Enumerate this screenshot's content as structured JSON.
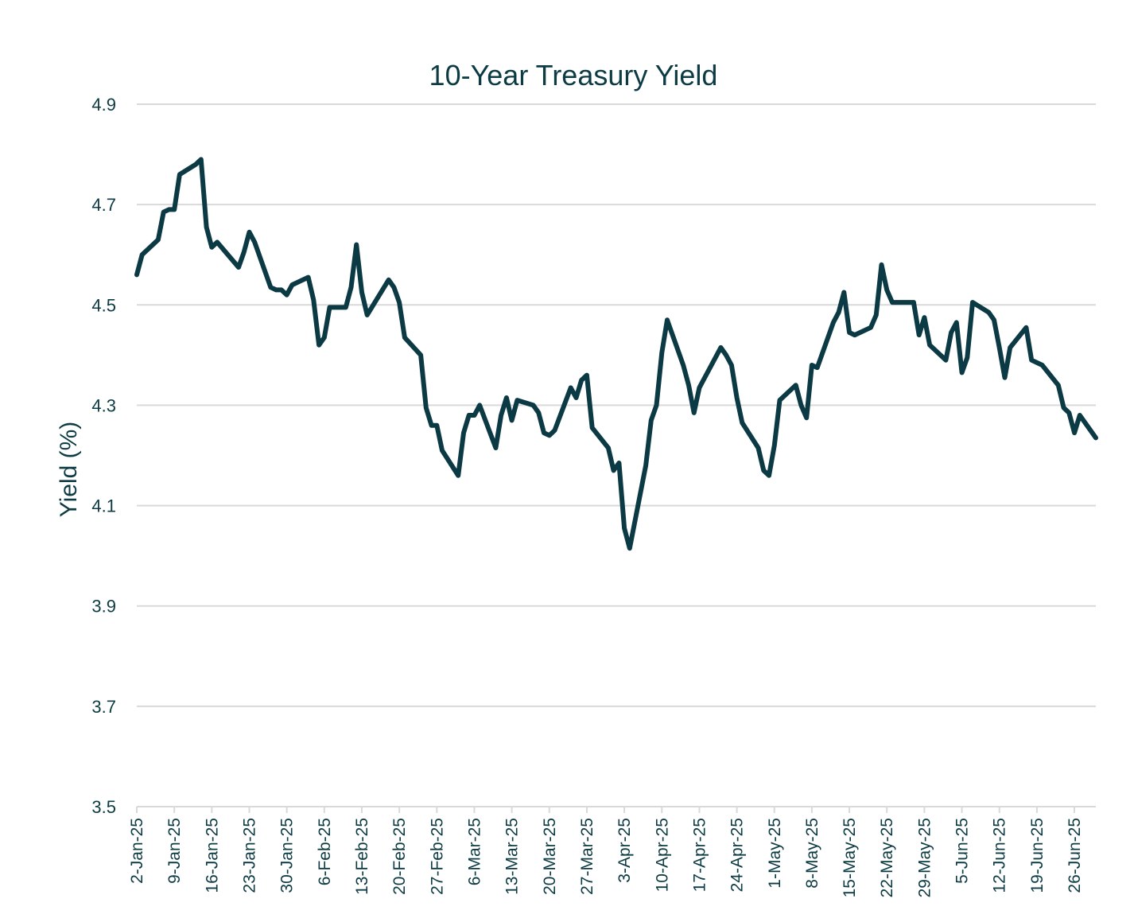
{
  "chart_data": {
    "type": "line",
    "title": "10-Year Treasury Yield",
    "xlabel": "",
    "ylabel": "Yield (%)",
    "ylim": [
      3.5,
      4.9
    ],
    "yticks": [
      "3.5",
      "3.7",
      "3.9",
      "4.1",
      "4.3",
      "4.5",
      "4.7",
      "4.9"
    ],
    "xlim": [
      "2025-01-02",
      "2025-06-30"
    ],
    "xticks": [
      {
        "date": "2025-01-02",
        "label": "2-Jan-25"
      },
      {
        "date": "2025-01-09",
        "label": "9-Jan-25"
      },
      {
        "date": "2025-01-16",
        "label": "16-Jan-25"
      },
      {
        "date": "2025-01-23",
        "label": "23-Jan-25"
      },
      {
        "date": "2025-01-30",
        "label": "30-Jan-25"
      },
      {
        "date": "2025-02-06",
        "label": "6-Feb-25"
      },
      {
        "date": "2025-02-13",
        "label": "13-Feb-25"
      },
      {
        "date": "2025-02-20",
        "label": "20-Feb-25"
      },
      {
        "date": "2025-02-27",
        "label": "27-Feb-25"
      },
      {
        "date": "2025-03-06",
        "label": "6-Mar-25"
      },
      {
        "date": "2025-03-13",
        "label": "13-Mar-25"
      },
      {
        "date": "2025-03-20",
        "label": "20-Mar-25"
      },
      {
        "date": "2025-03-27",
        "label": "27-Mar-25"
      },
      {
        "date": "2025-04-03",
        "label": "3-Apr-25"
      },
      {
        "date": "2025-04-10",
        "label": "10-Apr-25"
      },
      {
        "date": "2025-04-17",
        "label": "17-Apr-25"
      },
      {
        "date": "2025-04-24",
        "label": "24-Apr-25"
      },
      {
        "date": "2025-05-01",
        "label": "1-May-25"
      },
      {
        "date": "2025-05-08",
        "label": "8-May-25"
      },
      {
        "date": "2025-05-15",
        "label": "15-May-25"
      },
      {
        "date": "2025-05-22",
        "label": "22-May-25"
      },
      {
        "date": "2025-05-29",
        "label": "29-May-25"
      },
      {
        "date": "2025-06-05",
        "label": "5-Jun-25"
      },
      {
        "date": "2025-06-12",
        "label": "12-Jun-25"
      },
      {
        "date": "2025-06-19",
        "label": "19-Jun-25"
      },
      {
        "date": "2025-06-26",
        "label": "26-Jun-25"
      }
    ],
    "grid": true,
    "legend": "none",
    "series": [
      {
        "color": "#0b3a45",
        "points": [
          {
            "x": "2025-01-02",
            "y": 4.56
          },
          {
            "x": "2025-01-03",
            "y": 4.6
          },
          {
            "x": "2025-01-06",
            "y": 4.63
          },
          {
            "x": "2025-01-07",
            "y": 4.685
          },
          {
            "x": "2025-01-08",
            "y": 4.69
          },
          {
            "x": "2025-01-09",
            "y": 4.69
          },
          {
            "x": "2025-01-10",
            "y": 4.76
          },
          {
            "x": "2025-01-13",
            "y": 4.78
          },
          {
            "x": "2025-01-14",
            "y": 4.79
          },
          {
            "x": "2025-01-15",
            "y": 4.655
          },
          {
            "x": "2025-01-16",
            "y": 4.615
          },
          {
            "x": "2025-01-17",
            "y": 4.625
          },
          {
            "x": "2025-01-21",
            "y": 4.575
          },
          {
            "x": "2025-01-22",
            "y": 4.605
          },
          {
            "x": "2025-01-23",
            "y": 4.645
          },
          {
            "x": "2025-01-24",
            "y": 4.625
          },
          {
            "x": "2025-01-27",
            "y": 4.535
          },
          {
            "x": "2025-01-28",
            "y": 4.53
          },
          {
            "x": "2025-01-29",
            "y": 4.53
          },
          {
            "x": "2025-01-30",
            "y": 4.52
          },
          {
            "x": "2025-01-31",
            "y": 4.54
          },
          {
            "x": "2025-02-03",
            "y": 4.555
          },
          {
            "x": "2025-02-04",
            "y": 4.51
          },
          {
            "x": "2025-02-05",
            "y": 4.42
          },
          {
            "x": "2025-02-06",
            "y": 4.435
          },
          {
            "x": "2025-02-07",
            "y": 4.495
          },
          {
            "x": "2025-02-10",
            "y": 4.495
          },
          {
            "x": "2025-02-11",
            "y": 4.535
          },
          {
            "x": "2025-02-12",
            "y": 4.62
          },
          {
            "x": "2025-02-13",
            "y": 4.525
          },
          {
            "x": "2025-02-14",
            "y": 4.48
          },
          {
            "x": "2025-02-18",
            "y": 4.55
          },
          {
            "x": "2025-02-19",
            "y": 4.535
          },
          {
            "x": "2025-02-20",
            "y": 4.505
          },
          {
            "x": "2025-02-21",
            "y": 4.435
          },
          {
            "x": "2025-02-24",
            "y": 4.4
          },
          {
            "x": "2025-02-25",
            "y": 4.295
          },
          {
            "x": "2025-02-26",
            "y": 4.26
          },
          {
            "x": "2025-02-27",
            "y": 4.26
          },
          {
            "x": "2025-02-28",
            "y": 4.21
          },
          {
            "x": "2025-03-03",
            "y": 4.16
          },
          {
            "x": "2025-03-04",
            "y": 4.245
          },
          {
            "x": "2025-03-05",
            "y": 4.28
          },
          {
            "x": "2025-03-06",
            "y": 4.28
          },
          {
            "x": "2025-03-07",
            "y": 4.3
          },
          {
            "x": "2025-03-10",
            "y": 4.215
          },
          {
            "x": "2025-03-11",
            "y": 4.28
          },
          {
            "x": "2025-03-12",
            "y": 4.315
          },
          {
            "x": "2025-03-13",
            "y": 4.27
          },
          {
            "x": "2025-03-14",
            "y": 4.31
          },
          {
            "x": "2025-03-17",
            "y": 4.3
          },
          {
            "x": "2025-03-18",
            "y": 4.285
          },
          {
            "x": "2025-03-19",
            "y": 4.245
          },
          {
            "x": "2025-03-20",
            "y": 4.24
          },
          {
            "x": "2025-03-21",
            "y": 4.25
          },
          {
            "x": "2025-03-24",
            "y": 4.335
          },
          {
            "x": "2025-03-25",
            "y": 4.315
          },
          {
            "x": "2025-03-26",
            "y": 4.35
          },
          {
            "x": "2025-03-27",
            "y": 4.36
          },
          {
            "x": "2025-03-28",
            "y": 4.255
          },
          {
            "x": "2025-03-31",
            "y": 4.215
          },
          {
            "x": "2025-04-01",
            "y": 4.17
          },
          {
            "x": "2025-04-02",
            "y": 4.185
          },
          {
            "x": "2025-04-03",
            "y": 4.055
          },
          {
            "x": "2025-04-04",
            "y": 4.015
          },
          {
            "x": "2025-04-07",
            "y": 4.18
          },
          {
            "x": "2025-04-08",
            "y": 4.27
          },
          {
            "x": "2025-04-09",
            "y": 4.3
          },
          {
            "x": "2025-04-10",
            "y": 4.405
          },
          {
            "x": "2025-04-11",
            "y": 4.47
          },
          {
            "x": "2025-04-14",
            "y": 4.38
          },
          {
            "x": "2025-04-15",
            "y": 4.34
          },
          {
            "x": "2025-04-16",
            "y": 4.285
          },
          {
            "x": "2025-04-17",
            "y": 4.335
          },
          {
            "x": "2025-04-21",
            "y": 4.415
          },
          {
            "x": "2025-04-22",
            "y": 4.4
          },
          {
            "x": "2025-04-23",
            "y": 4.38
          },
          {
            "x": "2025-04-24",
            "y": 4.315
          },
          {
            "x": "2025-04-25",
            "y": 4.265
          },
          {
            "x": "2025-04-28",
            "y": 4.215
          },
          {
            "x": "2025-04-29",
            "y": 4.17
          },
          {
            "x": "2025-04-30",
            "y": 4.16
          },
          {
            "x": "2025-05-01",
            "y": 4.22
          },
          {
            "x": "2025-05-02",
            "y": 4.31
          },
          {
            "x": "2025-05-05",
            "y": 4.34
          },
          {
            "x": "2025-05-06",
            "y": 4.3
          },
          {
            "x": "2025-05-07",
            "y": 4.275
          },
          {
            "x": "2025-05-08",
            "y": 4.38
          },
          {
            "x": "2025-05-09",
            "y": 4.375
          },
          {
            "x": "2025-05-12",
            "y": 4.465
          },
          {
            "x": "2025-05-13",
            "y": 4.485
          },
          {
            "x": "2025-05-14",
            "y": 4.525
          },
          {
            "x": "2025-05-15",
            "y": 4.445
          },
          {
            "x": "2025-05-16",
            "y": 4.44
          },
          {
            "x": "2025-05-19",
            "y": 4.455
          },
          {
            "x": "2025-05-20",
            "y": 4.48
          },
          {
            "x": "2025-05-21",
            "y": 4.58
          },
          {
            "x": "2025-05-22",
            "y": 4.53
          },
          {
            "x": "2025-05-23",
            "y": 4.505
          },
          {
            "x": "2025-05-27",
            "y": 4.505
          },
          {
            "x": "2025-05-28",
            "y": 4.44
          },
          {
            "x": "2025-05-29",
            "y": 4.475
          },
          {
            "x": "2025-05-30",
            "y": 4.42
          },
          {
            "x": "2025-06-02",
            "y": 4.39
          },
          {
            "x": "2025-06-03",
            "y": 4.445
          },
          {
            "x": "2025-06-04",
            "y": 4.465
          },
          {
            "x": "2025-06-05",
            "y": 4.365
          },
          {
            "x": "2025-06-06",
            "y": 4.395
          },
          {
            "x": "2025-06-07",
            "y": 4.505
          },
          {
            "x": "2025-06-10",
            "y": 4.485
          },
          {
            "x": "2025-06-11",
            "y": 4.47
          },
          {
            "x": "2025-06-12",
            "y": 4.415
          },
          {
            "x": "2025-06-13",
            "y": 4.355
          },
          {
            "x": "2025-06-14",
            "y": 4.415
          },
          {
            "x": "2025-06-17",
            "y": 4.455
          },
          {
            "x": "2025-06-18",
            "y": 4.39
          },
          {
            "x": "2025-06-20",
            "y": 4.38
          },
          {
            "x": "2025-06-23",
            "y": 4.34
          },
          {
            "x": "2025-06-24",
            "y": 4.295
          },
          {
            "x": "2025-06-25",
            "y": 4.285
          },
          {
            "x": "2025-06-26",
            "y": 4.245
          },
          {
            "x": "2025-06-27",
            "y": 4.28
          },
          {
            "x": "2025-06-30",
            "y": 4.235
          }
        ]
      }
    ]
  }
}
